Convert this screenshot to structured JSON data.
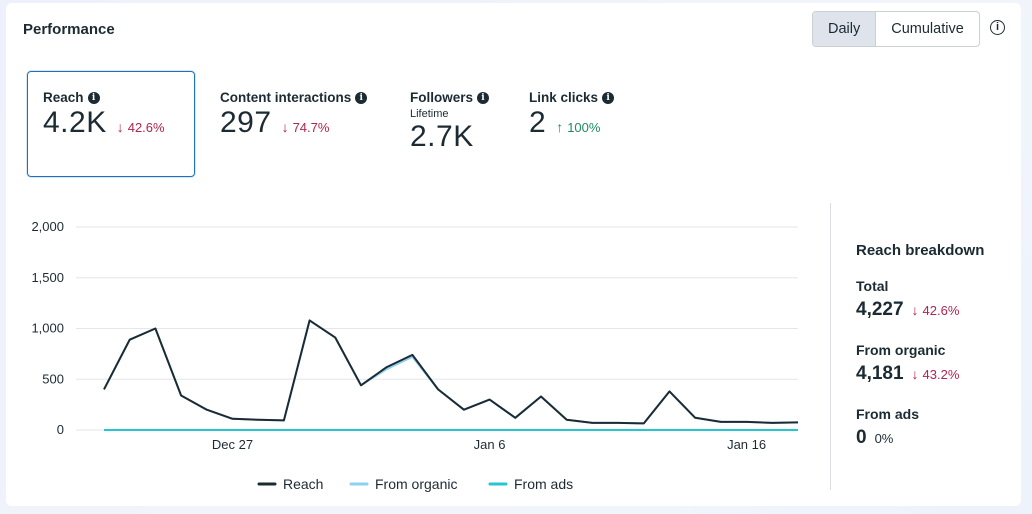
{
  "header": {
    "title": "Performance"
  },
  "toggle": {
    "daily": "Daily",
    "cumulative": "Cumulative"
  },
  "info_icon": "i",
  "metrics": [
    {
      "label": "Reach",
      "value": "4.2K",
      "change": "42.6%",
      "direction": "down"
    },
    {
      "label": "Content interactions",
      "value": "297",
      "change": "74.7%",
      "direction": "down"
    },
    {
      "label": "Followers",
      "sublabel": "Lifetime",
      "value": "2.7K"
    },
    {
      "label": "Link clicks",
      "value": "2",
      "change": "100%",
      "direction": "up"
    }
  ],
  "arrows": {
    "down": "↓",
    "up": "↑"
  },
  "chart_data": {
    "type": "line",
    "y_ticks": [
      "2,000",
      "1,500",
      "1,000",
      "500",
      "0"
    ],
    "x_ticks": [
      "Dec 27",
      "Jan 6",
      "Jan 16"
    ],
    "ylim": [
      0,
      2000
    ],
    "grid": true,
    "legend_position": "bottom",
    "x": [
      "Dec 22",
      "Dec 23",
      "Dec 24",
      "Dec 25",
      "Dec 26",
      "Dec 27",
      "Dec 28",
      "Dec 29",
      "Dec 30",
      "Dec 31",
      "Jan 1",
      "Jan 2",
      "Jan 3",
      "Jan 4",
      "Jan 5",
      "Jan 6",
      "Jan 7",
      "Jan 8",
      "Jan 9",
      "Jan 10",
      "Jan 11",
      "Jan 12",
      "Jan 13",
      "Jan 14",
      "Jan 15",
      "Jan 16",
      "Jan 17",
      "Jan 18"
    ],
    "series": [
      {
        "name": "Reach",
        "color": "#1c2b33",
        "values": [
          400,
          890,
          1000,
          340,
          200,
          110,
          100,
          95,
          1080,
          910,
          440,
          620,
          740,
          400,
          200,
          300,
          120,
          330,
          100,
          70,
          70,
          65,
          380,
          120,
          80,
          80,
          70,
          75
        ]
      },
      {
        "name": "From organic",
        "color": "#8dd0f3",
        "values": [
          400,
          890,
          1000,
          340,
          200,
          110,
          100,
          95,
          1080,
          910,
          440,
          600,
          720,
          400,
          200,
          300,
          120,
          330,
          100,
          70,
          70,
          65,
          380,
          120,
          80,
          80,
          70,
          75
        ]
      },
      {
        "name": "From ads",
        "color": "#27c5cf",
        "values": [
          0,
          0,
          0,
          0,
          0,
          0,
          0,
          0,
          0,
          0,
          0,
          0,
          0,
          0,
          0,
          0,
          0,
          0,
          0,
          0,
          0,
          0,
          0,
          0,
          0,
          0,
          0,
          0
        ]
      }
    ]
  },
  "breakdown": {
    "title": "Reach breakdown",
    "items": [
      {
        "label": "Total",
        "value": "4,227",
        "change": "42.6%",
        "direction": "down"
      },
      {
        "label": "From organic",
        "value": "4,181",
        "change": "43.2%",
        "direction": "down"
      },
      {
        "label": "From ads",
        "value": "0",
        "change": "0%",
        "direction": "none"
      }
    ]
  },
  "colors": {
    "accent": "#1f6fbf",
    "down": "#b0244f",
    "up": "#1f8a63"
  }
}
